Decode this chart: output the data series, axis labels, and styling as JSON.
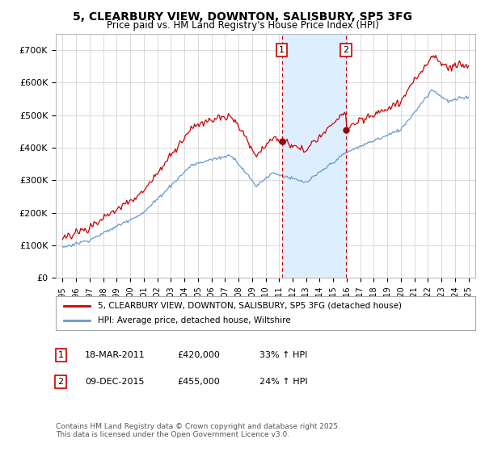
{
  "title": "5, CLEARBURY VIEW, DOWNTON, SALISBURY, SP5 3FG",
  "subtitle": "Price paid vs. HM Land Registry's House Price Index (HPI)",
  "ylim": [
    0,
    750000
  ],
  "yticks": [
    0,
    100000,
    200000,
    300000,
    400000,
    500000,
    600000,
    700000
  ],
  "ytick_labels": [
    "£0",
    "£100K",
    "£200K",
    "£300K",
    "£400K",
    "£500K",
    "£600K",
    "£700K"
  ],
  "sale1_year": 2011.21,
  "sale1_price": 420000,
  "sale1_label": "1",
  "sale2_year": 2015.94,
  "sale2_price": 455000,
  "sale2_label": "2",
  "line_red_color": "#cc0000",
  "line_blue_color": "#6699cc",
  "shade_color": "#ddeeff",
  "marker_dot_color": "#990000",
  "legend1_label": "5, CLEARBURY VIEW, DOWNTON, SALISBURY, SP5 3FG (detached house)",
  "legend2_label": "HPI: Average price, detached house, Wiltshire",
  "ann1_date": "18-MAR-2011",
  "ann1_price": "£420,000",
  "ann1_hpi": "33% ↑ HPI",
  "ann2_date": "09-DEC-2015",
  "ann2_price": "£455,000",
  "ann2_hpi": "24% ↑ HPI",
  "footer": "Contains HM Land Registry data © Crown copyright and database right 2025.\nThis data is licensed under the Open Government Licence v3.0.",
  "background_color": "#ffffff",
  "grid_color": "#cccccc",
  "xstart": 1995,
  "xend": 2025
}
